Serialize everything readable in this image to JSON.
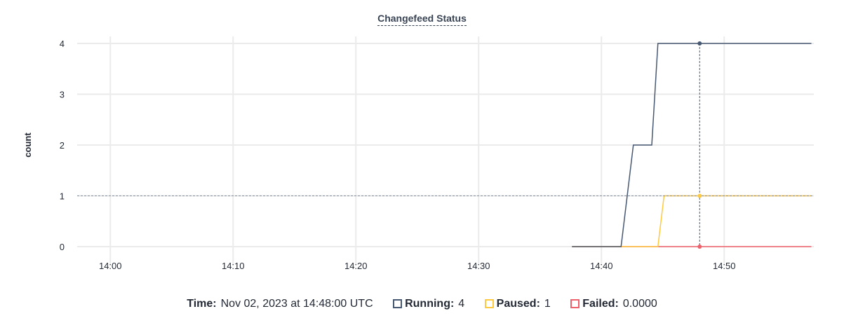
{
  "chart_data": {
    "type": "line",
    "title": "Changefeed Status",
    "ylabel": "count",
    "xlabel": "",
    "xlim": [
      "13:57:18",
      "14:57:18"
    ],
    "ylim": [
      0,
      4
    ],
    "yticks": [
      0,
      1,
      2,
      3,
      4
    ],
    "xticks": [
      "14:00",
      "14:10",
      "14:20",
      "14:30",
      "14:40",
      "14:50"
    ],
    "grid": true,
    "series": [
      {
        "name": "Running",
        "color": "#475872",
        "points": [
          [
            "14:37:36",
            0
          ],
          [
            "14:41:36",
            0
          ],
          [
            "14:42:36",
            2
          ],
          [
            "14:44:06",
            2
          ],
          [
            "14:44:36",
            4
          ],
          [
            "14:57:06",
            4
          ]
        ]
      },
      {
        "name": "Paused",
        "color": "#ffc940",
        "points": [
          [
            "14:37:36",
            0
          ],
          [
            "14:44:36",
            0
          ],
          [
            "14:45:06",
            1
          ],
          [
            "14:57:06",
            1
          ]
        ]
      },
      {
        "name": "Failed",
        "color": "#f0606a",
        "points": [
          [
            "14:37:36",
            0
          ],
          [
            "14:57:06",
            0
          ]
        ]
      }
    ],
    "hover": {
      "time": "14:48:00",
      "y_crosshair": 1
    }
  },
  "legend": {
    "time_label": "Time:",
    "time_value": "Nov 02, 2023 at 14:48:00 UTC",
    "items": [
      {
        "label": "Running:",
        "value": "4",
        "color": "#475872"
      },
      {
        "label": "Paused:",
        "value": "1",
        "color": "#ffc940"
      },
      {
        "label": "Failed:",
        "value": "0.0000",
        "color": "#f0606a"
      }
    ]
  }
}
